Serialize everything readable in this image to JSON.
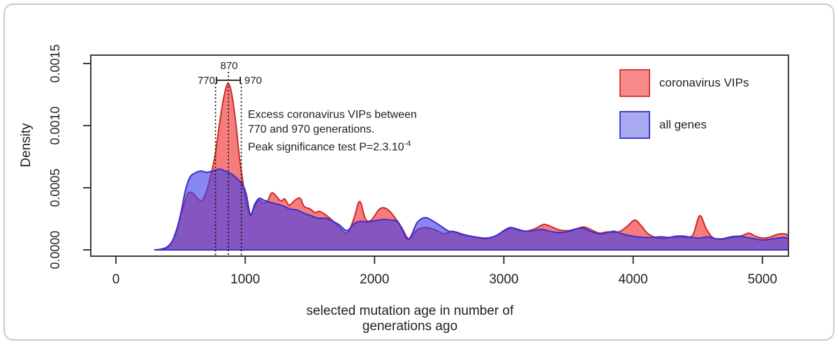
{
  "chart_data": {
    "type": "area",
    "title": "",
    "xlabel": "selected mutation age in number of generations ago",
    "ylabel": "Density",
    "xlim": [
      -200,
      5210
    ],
    "ylim": [
      0,
      0.00157
    ],
    "grid": false,
    "x_tick_values": [
      0,
      1000,
      2000,
      3000,
      4000,
      5000
    ],
    "x_tick_labels": [
      "0",
      "1000",
      "2000",
      "3000",
      "4000",
      "5000"
    ],
    "y_tick_values": [
      0,
      0.0005,
      0.001,
      0.0015
    ],
    "y_tick_labels": [
      "0.0000",
      "0.0005",
      "0.0010",
      "0.0015"
    ],
    "density_unit": "1e-4 (multiply stored density values by 0.0001)",
    "legend": {
      "position": "top-right-inside",
      "items": [
        {
          "label": "coronavirus VIPs",
          "fill": "#f98a8a",
          "border": "#d63c3c"
        },
        {
          "label": "all genes",
          "fill": "#a9a9ef",
          "border": "#4040cc"
        }
      ]
    },
    "annotations": {
      "peak_label": "870",
      "low_label": "770",
      "high_label": "970",
      "vline_generations": [
        770,
        870,
        970
      ],
      "bracket_range_generations": [
        770,
        970
      ],
      "note_line1": "Excess coronavirus VIPs between",
      "note_line2": "770 and 970 generations.",
      "note_line3_base": "Peak significance test P=2.3.10",
      "note_line3_sup": "-4"
    },
    "series": [
      {
        "name": "coronavirus VIPs",
        "fill": "rgba(243,58,58,0.66)",
        "stroke": "#cc2b2b",
        "points": [
          [
            320,
            0
          ],
          [
            360,
            0.05
          ],
          [
            400,
            0.25
          ],
          [
            440,
            0.8
          ],
          [
            480,
            2.0
          ],
          [
            520,
            3.4
          ],
          [
            555,
            4.5
          ],
          [
            590,
            4.6
          ],
          [
            630,
            4.15
          ],
          [
            665,
            3.95
          ],
          [
            700,
            4.7
          ],
          [
            740,
            6.3
          ],
          [
            770,
            7.8
          ],
          [
            810,
            10.8
          ],
          [
            845,
            12.8
          ],
          [
            870,
            13.4
          ],
          [
            895,
            12.6
          ],
          [
            925,
            10.4
          ],
          [
            955,
            7.5
          ],
          [
            980,
            5.6
          ],
          [
            1005,
            4.0
          ],
          [
            1038,
            2.75
          ],
          [
            1070,
            3.4
          ],
          [
            1105,
            4.0
          ],
          [
            1142,
            3.75
          ],
          [
            1175,
            4.0
          ],
          [
            1210,
            4.6
          ],
          [
            1272,
            3.95
          ],
          [
            1305,
            4.1
          ],
          [
            1340,
            3.6
          ],
          [
            1385,
            4.0
          ],
          [
            1425,
            4.15
          ],
          [
            1455,
            3.5
          ],
          [
            1500,
            3.3
          ],
          [
            1540,
            3.0
          ],
          [
            1570,
            3.1
          ],
          [
            1610,
            2.9
          ],
          [
            1660,
            2.5
          ],
          [
            1720,
            1.9
          ],
          [
            1787,
            1.35
          ],
          [
            1840,
            2.5
          ],
          [
            1885,
            3.9
          ],
          [
            1930,
            2.5
          ],
          [
            1975,
            2.4
          ],
          [
            2040,
            3.3
          ],
          [
            2095,
            3.3
          ],
          [
            2150,
            2.7
          ],
          [
            2210,
            1.8
          ],
          [
            2265,
            0.9
          ],
          [
            2330,
            1.6
          ],
          [
            2400,
            1.8
          ],
          [
            2470,
            1.6
          ],
          [
            2540,
            1.3
          ],
          [
            2600,
            1.5
          ],
          [
            2660,
            1.25
          ],
          [
            2720,
            1.15
          ],
          [
            2790,
            1.0
          ],
          [
            2860,
            0.9
          ],
          [
            2930,
            1.1
          ],
          [
            3000,
            1.5
          ],
          [
            3055,
            1.75
          ],
          [
            3110,
            1.6
          ],
          [
            3170,
            1.5
          ],
          [
            3240,
            1.7
          ],
          [
            3310,
            2.05
          ],
          [
            3370,
            1.85
          ],
          [
            3430,
            1.6
          ],
          [
            3500,
            1.55
          ],
          [
            3560,
            1.7
          ],
          [
            3620,
            1.85
          ],
          [
            3680,
            1.6
          ],
          [
            3740,
            1.35
          ],
          [
            3800,
            1.45
          ],
          [
            3860,
            1.4
          ],
          [
            3910,
            1.55
          ],
          [
            3965,
            2.0
          ],
          [
            4015,
            2.4
          ],
          [
            4065,
            1.9
          ],
          [
            4115,
            1.3
          ],
          [
            4175,
            1.0
          ],
          [
            4235,
            0.9
          ],
          [
            4295,
            1.0
          ],
          [
            4355,
            1.05
          ],
          [
            4415,
            1.0
          ],
          [
            4465,
            1.25
          ],
          [
            4515,
            2.75
          ],
          [
            4565,
            1.7
          ],
          [
            4615,
            1.0
          ],
          [
            4675,
            0.85
          ],
          [
            4735,
            0.95
          ],
          [
            4795,
            1.05
          ],
          [
            4845,
            1.15
          ],
          [
            4895,
            1.35
          ],
          [
            4945,
            1.1
          ],
          [
            5005,
            0.95
          ],
          [
            5065,
            1.05
          ],
          [
            5115,
            1.25
          ],
          [
            5165,
            1.3
          ],
          [
            5210,
            1.15
          ]
        ]
      },
      {
        "name": "all genes",
        "fill": "rgba(63,63,233,0.62)",
        "stroke": "#3a2fd0",
        "points": [
          [
            300,
            0
          ],
          [
            345,
            0.05
          ],
          [
            390,
            0.2
          ],
          [
            430,
            0.6
          ],
          [
            470,
            1.6
          ],
          [
            505,
            3.1
          ],
          [
            540,
            4.9
          ],
          [
            575,
            5.9
          ],
          [
            615,
            6.2
          ],
          [
            655,
            6.35
          ],
          [
            700,
            6.25
          ],
          [
            750,
            6.35
          ],
          [
            800,
            6.5
          ],
          [
            845,
            6.35
          ],
          [
            880,
            6.2
          ],
          [
            915,
            5.95
          ],
          [
            950,
            5.6
          ],
          [
            980,
            5.25
          ],
          [
            1008,
            4.5
          ],
          [
            1040,
            2.85
          ],
          [
            1075,
            3.7
          ],
          [
            1108,
            4.15
          ],
          [
            1145,
            4.0
          ],
          [
            1185,
            3.85
          ],
          [
            1240,
            3.7
          ],
          [
            1290,
            3.55
          ],
          [
            1345,
            3.3
          ],
          [
            1400,
            3.2
          ],
          [
            1455,
            2.95
          ],
          [
            1510,
            2.75
          ],
          [
            1565,
            2.55
          ],
          [
            1625,
            2.55
          ],
          [
            1680,
            2.3
          ],
          [
            1730,
            2.0
          ],
          [
            1787,
            1.55
          ],
          [
            1840,
            2.1
          ],
          [
            1890,
            2.3
          ],
          [
            1945,
            2.25
          ],
          [
            2005,
            2.35
          ],
          [
            2065,
            2.45
          ],
          [
            2125,
            2.4
          ],
          [
            2185,
            2.2
          ],
          [
            2260,
            0.85
          ],
          [
            2330,
            2.2
          ],
          [
            2392,
            2.6
          ],
          [
            2455,
            2.3
          ],
          [
            2515,
            1.9
          ],
          [
            2575,
            1.5
          ],
          [
            2625,
            1.45
          ],
          [
            2685,
            1.25
          ],
          [
            2745,
            1.1
          ],
          [
            2805,
            1.0
          ],
          [
            2870,
            0.95
          ],
          [
            2940,
            1.15
          ],
          [
            3000,
            1.55
          ],
          [
            3050,
            1.8
          ],
          [
            3110,
            1.65
          ],
          [
            3170,
            1.5
          ],
          [
            3230,
            1.55
          ],
          [
            3295,
            1.65
          ],
          [
            3355,
            1.5
          ],
          [
            3420,
            1.4
          ],
          [
            3485,
            1.45
          ],
          [
            3550,
            1.65
          ],
          [
            3610,
            1.75
          ],
          [
            3670,
            1.5
          ],
          [
            3730,
            1.3
          ],
          [
            3790,
            1.35
          ],
          [
            3850,
            1.5
          ],
          [
            3910,
            1.3
          ],
          [
            3970,
            1.15
          ],
          [
            4030,
            1.05
          ],
          [
            4090,
            1.0
          ],
          [
            4150,
            1.0
          ],
          [
            4215,
            1.05
          ],
          [
            4275,
            1.0
          ],
          [
            4335,
            1.1
          ],
          [
            4395,
            1.1
          ],
          [
            4455,
            1.0
          ],
          [
            4515,
            0.95
          ],
          [
            4575,
            1.05
          ],
          [
            4635,
            0.9
          ],
          [
            4695,
            0.9
          ],
          [
            4755,
            1.05
          ],
          [
            4815,
            1.1
          ],
          [
            4875,
            1.0
          ],
          [
            4935,
            0.9
          ],
          [
            4995,
            0.8
          ],
          [
            5055,
            0.85
          ],
          [
            5115,
            0.95
          ],
          [
            5165,
            1.0
          ],
          [
            5210,
            0.9
          ]
        ]
      }
    ]
  }
}
